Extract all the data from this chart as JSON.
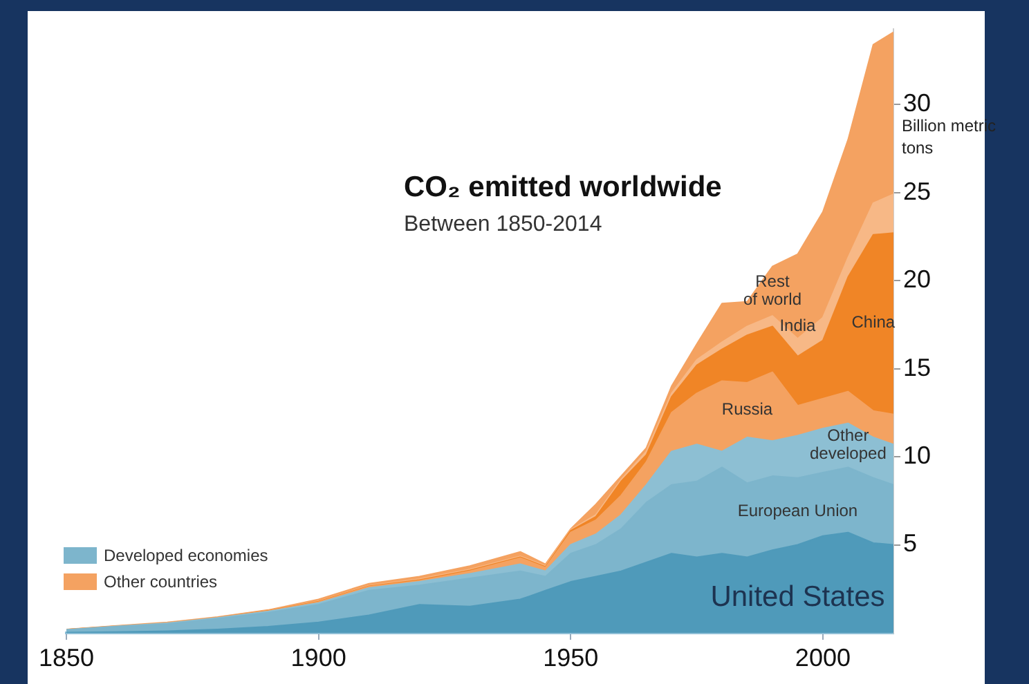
{
  "chart_data": {
    "type": "area",
    "title": "CO₂ emitted worldwide",
    "subtitle": "Between 1850-2014",
    "ylabel": "Billion metric tons",
    "stacked": true,
    "x": [
      1850,
      1860,
      1870,
      1880,
      1890,
      1900,
      1910,
      1920,
      1930,
      1940,
      1945,
      1950,
      1955,
      1960,
      1965,
      1970,
      1975,
      1980,
      1985,
      1990,
      1995,
      2000,
      2005,
      2010,
      2014
    ],
    "series": [
      {
        "name": "United States",
        "color": "#4f9aba",
        "values": [
          0.02,
          0.05,
          0.1,
          0.2,
          0.35,
          0.6,
          1.0,
          1.6,
          1.5,
          1.9,
          2.4,
          2.9,
          3.2,
          3.5,
          4.0,
          4.5,
          4.3,
          4.5,
          4.3,
          4.7,
          5.0,
          5.5,
          5.7,
          5.1,
          5.0
        ]
      },
      {
        "name": "European Union",
        "color": "#7db5cc",
        "values": [
          0.15,
          0.3,
          0.4,
          0.6,
          0.8,
          1.0,
          1.4,
          1.1,
          1.6,
          1.6,
          0.8,
          1.6,
          1.8,
          2.4,
          3.4,
          3.9,
          4.3,
          4.9,
          4.2,
          4.2,
          3.8,
          3.6,
          3.7,
          3.7,
          3.4
        ]
      },
      {
        "name": "Other developed",
        "color": "#8dbfd3",
        "values": [
          0.01,
          0.02,
          0.05,
          0.05,
          0.07,
          0.1,
          0.15,
          0.2,
          0.25,
          0.4,
          0.3,
          0.5,
          0.6,
          0.8,
          1.0,
          1.9,
          2.1,
          0.9,
          2.6,
          2.0,
          2.4,
          2.5,
          2.5,
          2.3,
          2.3
        ]
      },
      {
        "name": "Russia",
        "color": "#f4a261",
        "values": [
          0,
          0,
          0,
          0.01,
          0.02,
          0.05,
          0.07,
          0.05,
          0.15,
          0.35,
          0.2,
          0.7,
          0.8,
          1.1,
          1.3,
          2.2,
          2.9,
          4.0,
          3.1,
          3.9,
          1.7,
          1.7,
          1.8,
          1.5,
          1.7
        ]
      },
      {
        "name": "China",
        "color": "#f08526",
        "values": [
          0.01,
          0.01,
          0.01,
          0.01,
          0.02,
          0.03,
          0.03,
          0.05,
          0.05,
          0.05,
          0.05,
          0.1,
          0.2,
          0.8,
          0.4,
          0.9,
          1.6,
          1.8,
          2.7,
          2.6,
          2.8,
          3.3,
          6.5,
          10.0,
          10.3
        ]
      },
      {
        "name": "India",
        "color": "#f7b886",
        "values": [
          0,
          0,
          0.01,
          0.01,
          0.01,
          0.02,
          0.03,
          0.05,
          0.05,
          0.05,
          0.05,
          0.05,
          0.1,
          0.1,
          0.2,
          0.2,
          0.3,
          0.4,
          0.5,
          0.6,
          1.0,
          1.3,
          1.1,
          1.8,
          2.2
        ]
      },
      {
        "name": "Rest of world",
        "color": "#f4a261",
        "values": [
          0.01,
          0.02,
          0.03,
          0.02,
          0.03,
          0.1,
          0.12,
          0.15,
          0.2,
          0.25,
          0.1,
          0.05,
          0.6,
          0.2,
          0.2,
          0.4,
          0.9,
          2.2,
          1.4,
          2.8,
          4.8,
          6.0,
          6.7,
          9.0,
          9.2
        ]
      }
    ],
    "xlim": [
      1850,
      2014
    ],
    "xticks": [
      1850,
      1900,
      1950,
      2000
    ],
    "ylim": [
      0,
      34.3
    ],
    "yticks": [
      5,
      10,
      15,
      20,
      25,
      30
    ],
    "annotations": [
      "Developed economies",
      "Other countries"
    ]
  }
}
